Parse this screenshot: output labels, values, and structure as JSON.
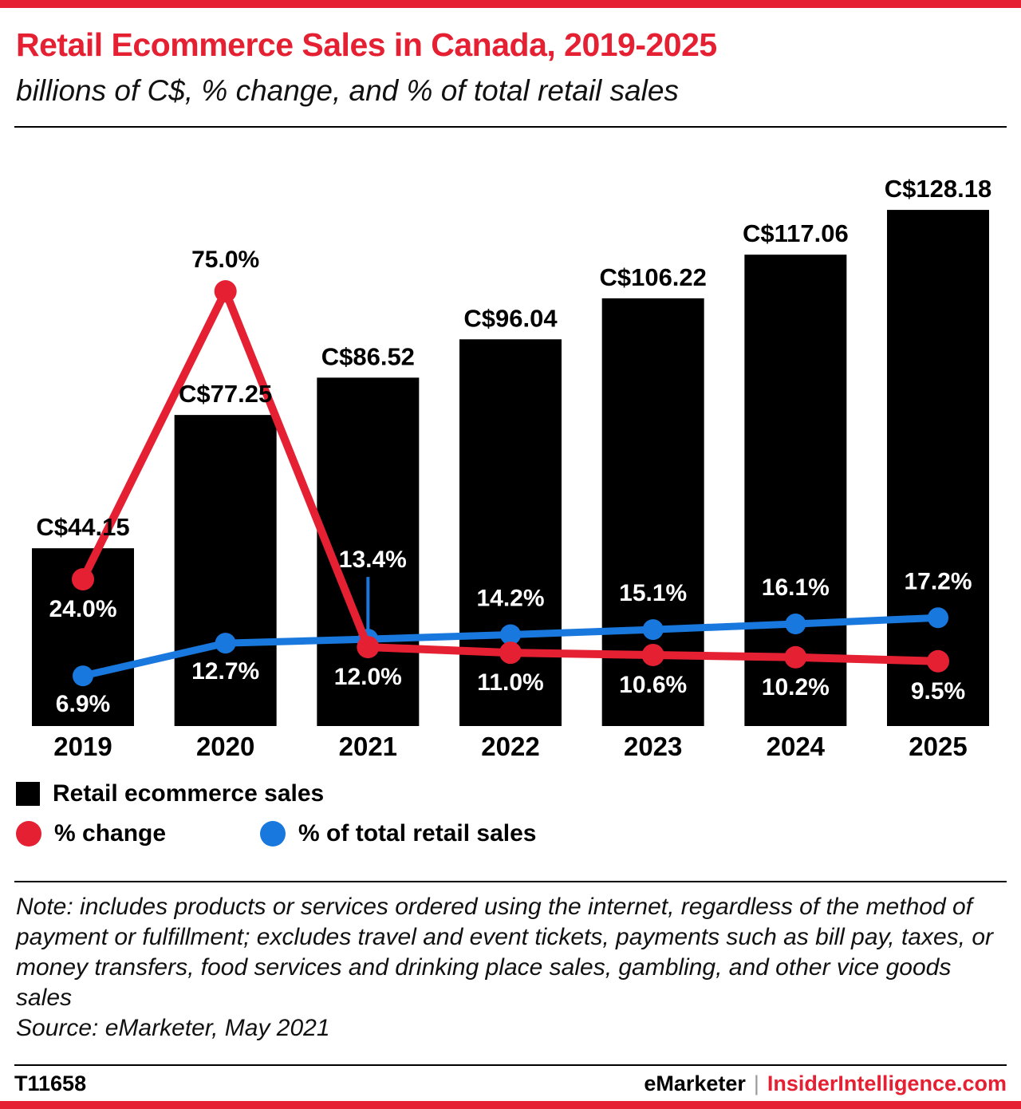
{
  "theme": {
    "red": "#e42032",
    "blue": "#1878dd",
    "black": "#000000",
    "separator_gray": "#9a9a9a"
  },
  "header": {
    "title": "Retail Ecommerce Sales in Canada, 2019-2025",
    "subtitle": "billions of C$, % change, and % of total retail sales"
  },
  "chart_data": {
    "type": "bar",
    "title": "Retail Ecommerce Sales in Canada, 2019-2025",
    "subtitle": "billions of C$, % change, and % of total retail sales",
    "categories": [
      "2019",
      "2020",
      "2021",
      "2022",
      "2023",
      "2024",
      "2025"
    ],
    "series": [
      {
        "name": "Retail ecommerce sales",
        "type": "bar",
        "unit": "billions of C$",
        "values": [
          44.15,
          77.25,
          86.52,
          96.04,
          106.22,
          117.06,
          128.18
        ],
        "labels": [
          "C$44.15",
          "C$77.25",
          "C$86.52",
          "C$96.04",
          "C$106.22",
          "C$117.06",
          "C$128.18"
        ]
      },
      {
        "name": "% change",
        "type": "line",
        "unit": "%",
        "values": [
          24.0,
          75.0,
          12.0,
          11.0,
          10.6,
          10.2,
          9.5
        ],
        "labels": [
          "24.0%",
          "75.0%",
          "12.0%",
          "11.0%",
          "10.6%",
          "10.2%",
          "9.5%"
        ]
      },
      {
        "name": "% of total retail sales",
        "type": "line",
        "unit": "%",
        "values": [
          6.9,
          12.7,
          13.4,
          14.2,
          15.1,
          16.1,
          17.2
        ],
        "labels": [
          "6.9%",
          "12.7%",
          "13.4%",
          "14.2%",
          "15.1%",
          "16.1%",
          "17.2%"
        ]
      }
    ],
    "colors": {
      "bar": "#000000",
      "change": "#e42032",
      "share": "#1878dd"
    },
    "ylim_bars": [
      0,
      135
    ],
    "ylim_pct": [
      0,
      90
    ],
    "gridlines": false,
    "legend_position": "bottom"
  },
  "legend": {
    "items": [
      {
        "label": "Retail ecommerce sales",
        "swatch": "square",
        "color": "#000000"
      },
      {
        "label": "% change",
        "swatch": "circle",
        "color": "#e42032"
      },
      {
        "label": "% of total retail sales",
        "swatch": "circle",
        "color": "#1878dd"
      }
    ]
  },
  "note": {
    "text": "Note: includes products or services ordered using the internet, regardless of the method of payment or fulfillment; excludes travel and event tickets, payments such as bill pay, taxes, or money transfers, food services and drinking place sales, gambling, and other vice goods sales",
    "source": "Source: eMarketer, May 2021"
  },
  "footer": {
    "id": "T11658",
    "brand": "eMarketer",
    "separator": "|",
    "site": "InsiderIntelligence.com"
  }
}
